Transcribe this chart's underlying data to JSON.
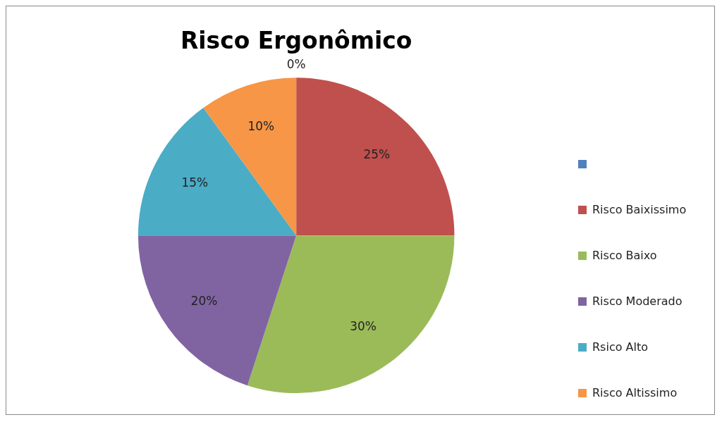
{
  "chart_data": {
    "type": "pie",
    "title": "Risco Ergonômico",
    "categories": [
      null,
      "Risco Baixissimo",
      "Risco Baixo",
      "Risco Moderado",
      "Rsico Alto",
      "Risco Altissimo"
    ],
    "values": [
      0,
      25,
      30,
      20,
      15,
      10
    ],
    "colors": [
      "#4f81bd",
      "#c0504d",
      "#9bbb59",
      "#8064a2",
      "#4bacc6",
      "#f79646"
    ],
    "value_labels": [
      "0%",
      "25%",
      "30%",
      "20%",
      "15%",
      "10%"
    ],
    "legend": "right"
  }
}
